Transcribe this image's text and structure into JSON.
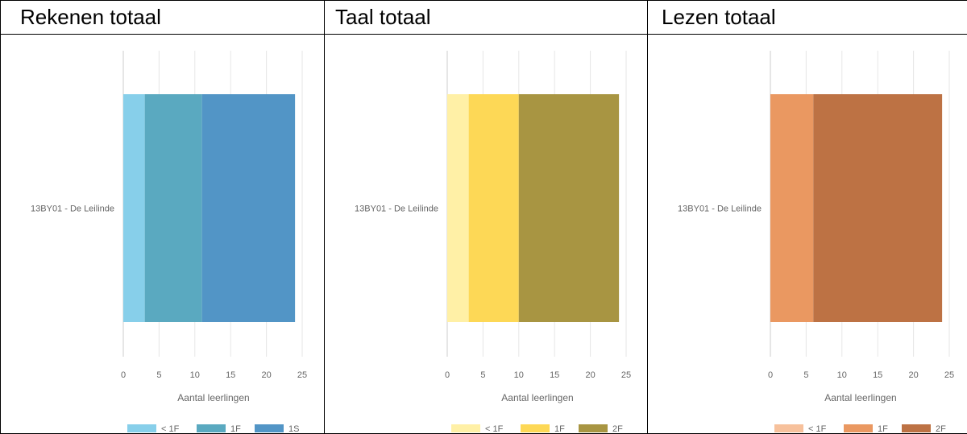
{
  "panels": [
    {
      "title": "Rekenen totaal"
    },
    {
      "title": "Taal totaal"
    },
    {
      "title": "Lezen totaal"
    }
  ],
  "chart_data": [
    {
      "type": "bar",
      "orientation": "horizontal",
      "stacked": true,
      "title": "Rekenen totaal",
      "categories": [
        "13BY01 - De Leilinde"
      ],
      "series": [
        {
          "name": "< 1F",
          "values": [
            3
          ],
          "color": "#87cfea"
        },
        {
          "name": "1F",
          "values": [
            8
          ],
          "color": "#5aa9c0"
        },
        {
          "name": "1S",
          "values": [
            13
          ],
          "color": "#5295c6"
        }
      ],
      "xlabel": "Aantal leerlingen",
      "xlim": [
        0,
        25
      ],
      "xticks": [
        0,
        5,
        10,
        15,
        20,
        25
      ],
      "grid": true,
      "legend": "bottom"
    },
    {
      "type": "bar",
      "orientation": "horizontal",
      "stacked": true,
      "title": "Taal totaal",
      "categories": [
        "13BY01 - De Leilinde"
      ],
      "series": [
        {
          "name": "< 1F",
          "values": [
            3
          ],
          "color": "#fff0a6"
        },
        {
          "name": "1F",
          "values": [
            7
          ],
          "color": "#fdd856"
        },
        {
          "name": "2F",
          "values": [
            14
          ],
          "color": "#a89542"
        }
      ],
      "xlabel": "Aantal leerlingen",
      "xlim": [
        0,
        25
      ],
      "xticks": [
        0,
        5,
        10,
        15,
        20,
        25
      ],
      "grid": true,
      "legend": "bottom"
    },
    {
      "type": "bar",
      "orientation": "horizontal",
      "stacked": true,
      "title": "Lezen totaal",
      "categories": [
        "13BY01 - De Leilinde"
      ],
      "series": [
        {
          "name": "< 1F",
          "values": [
            0
          ],
          "color": "#f7c19c"
        },
        {
          "name": "1F",
          "values": [
            6
          ],
          "color": "#ea9861"
        },
        {
          "name": "2F",
          "values": [
            18
          ],
          "color": "#bd7244"
        }
      ],
      "xlabel": "Aantal leerlingen",
      "xlim": [
        0,
        25
      ],
      "xticks": [
        0,
        5,
        10,
        15,
        20,
        25
      ],
      "grid": true,
      "legend": "bottom"
    }
  ]
}
